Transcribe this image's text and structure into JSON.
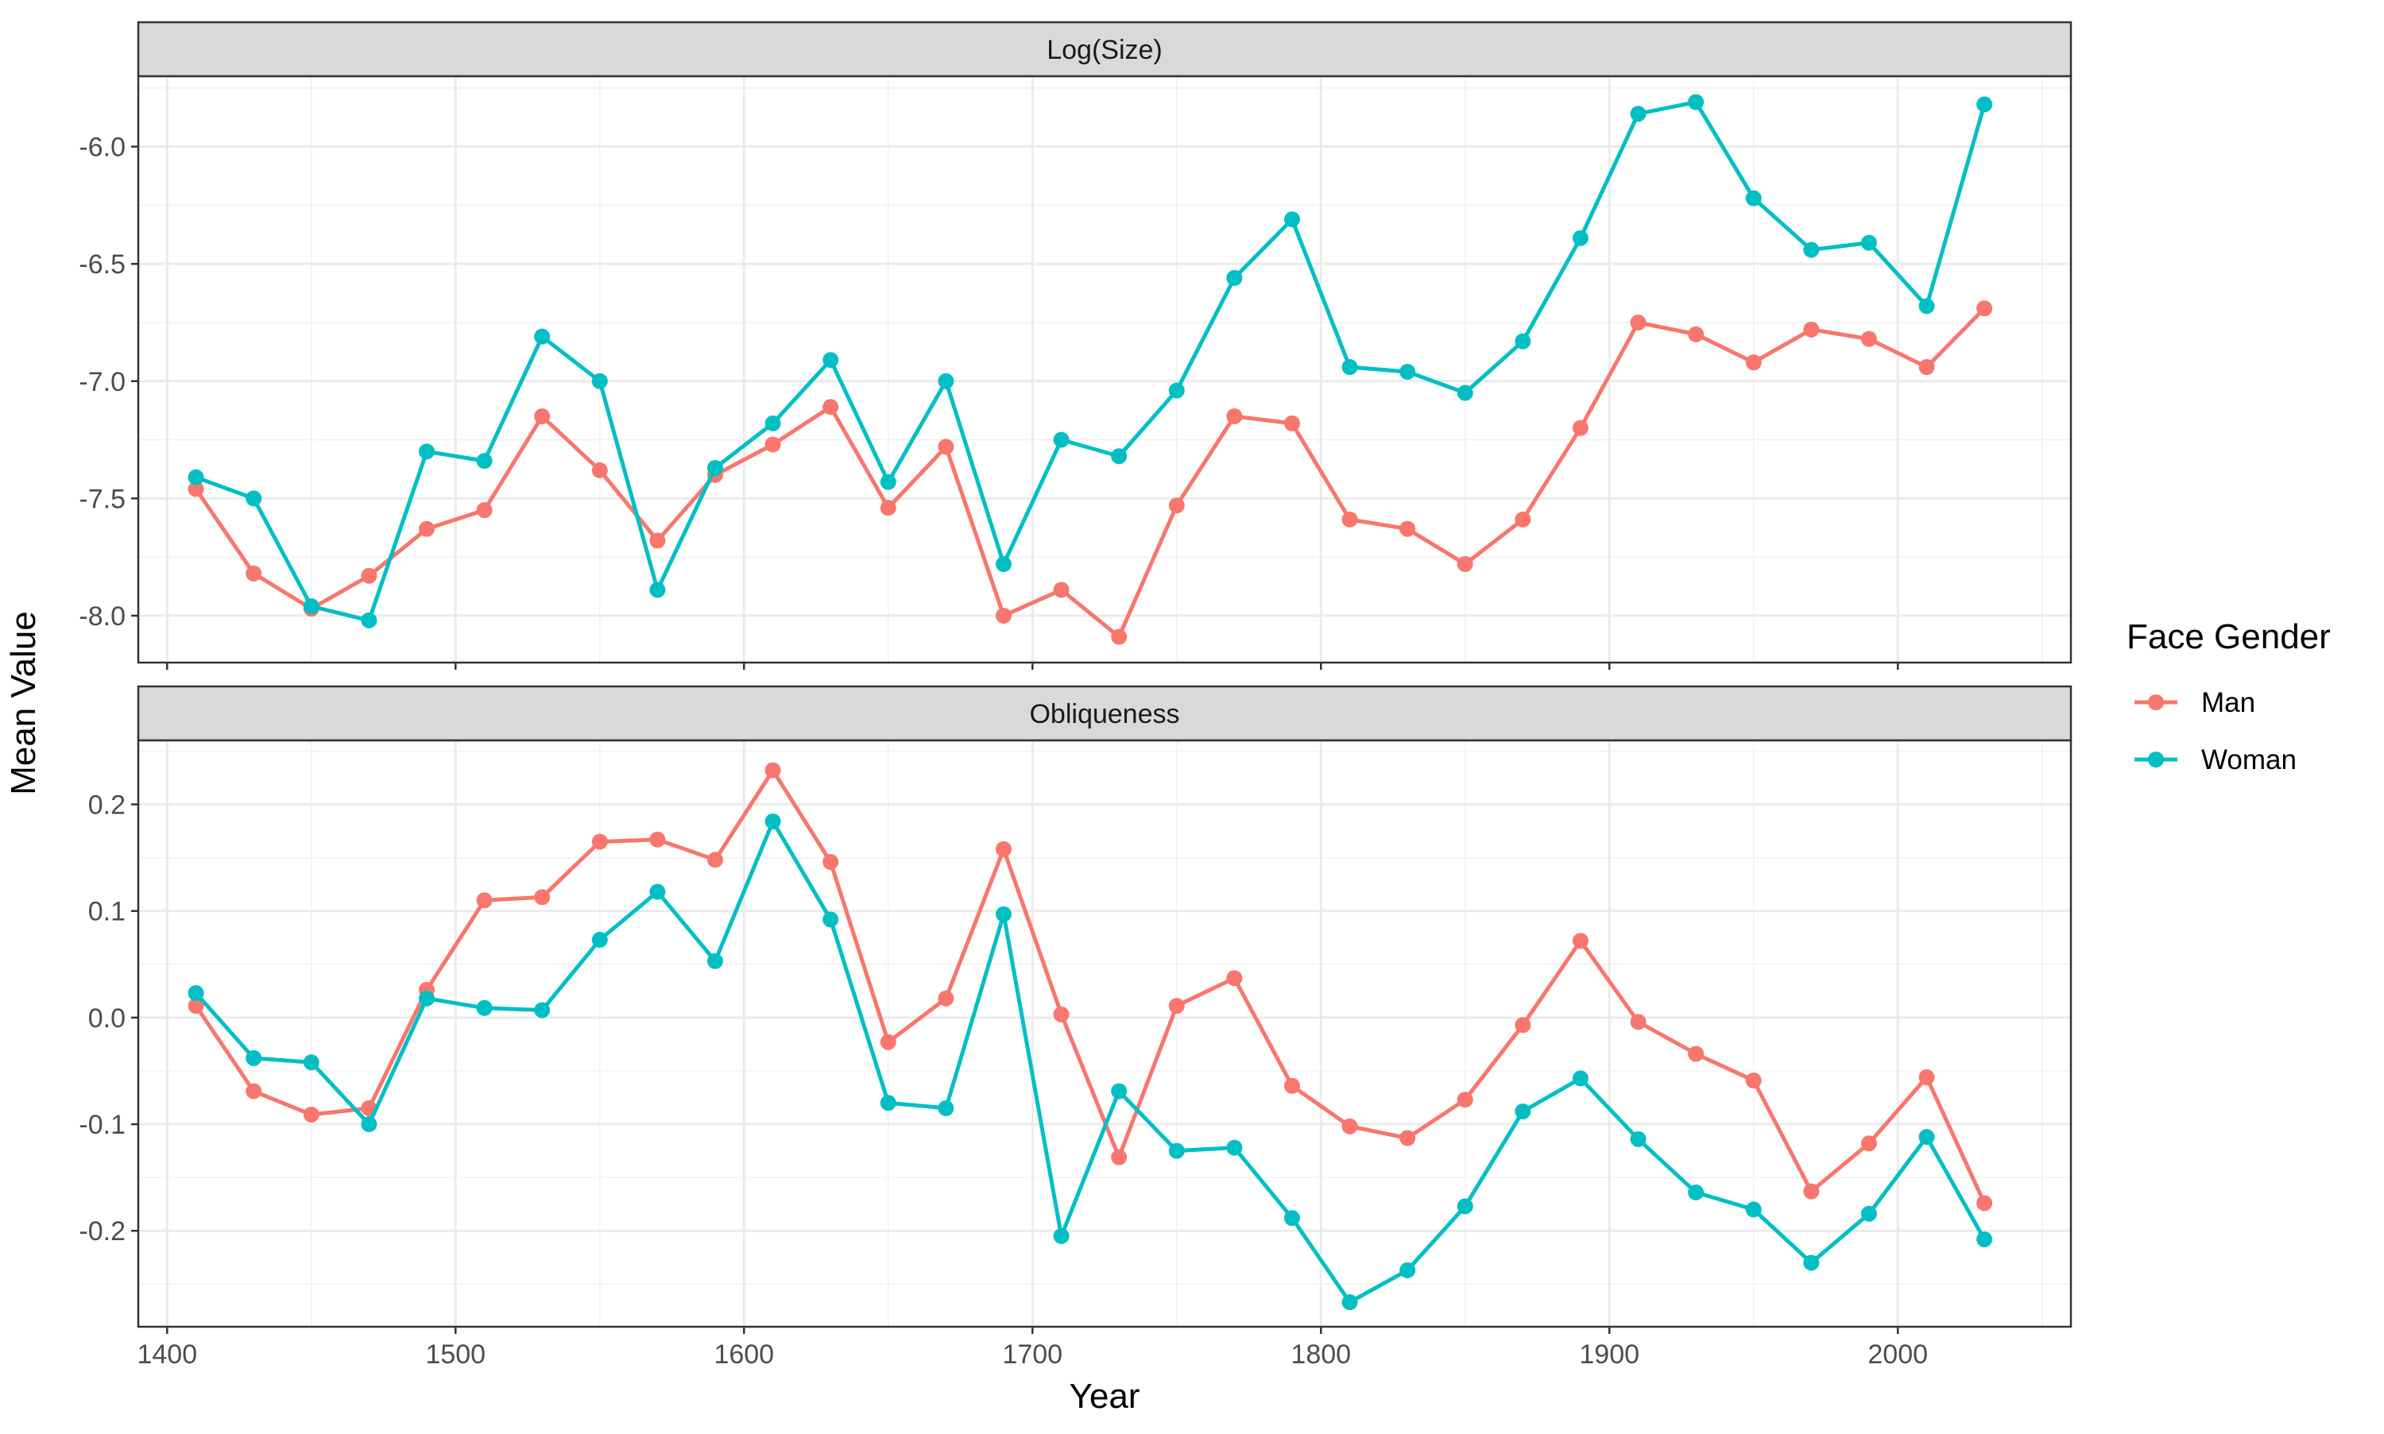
{
  "chart_data": {
    "type": "line",
    "xlabel": "Year",
    "ylabel": "Mean Value",
    "xlim": [
      1390,
      2060
    ],
    "x_ticks": [
      1400,
      1500,
      1600,
      1700,
      1800,
      1900,
      2000
    ],
    "x_tick_labels": [
      "1400",
      "1500",
      "1600",
      "1700",
      "1800",
      "1900",
      "2000"
    ],
    "x": [
      1410,
      1430,
      1450,
      1470,
      1490,
      1510,
      1530,
      1550,
      1570,
      1590,
      1610,
      1630,
      1650,
      1670,
      1690,
      1710,
      1730,
      1750,
      1770,
      1790,
      1810,
      1830,
      1850,
      1870,
      1890,
      1910,
      1930,
      1950,
      1970,
      1990,
      2010,
      2030
    ],
    "grid": true,
    "legend": {
      "title": "Face Gender",
      "position": "right",
      "entries": [
        {
          "label": "Man",
          "color": "#F8766D"
        },
        {
          "label": "Woman",
          "color": "#00BFC4"
        }
      ]
    },
    "panels": [
      {
        "title": "Log(Size)",
        "ylim": [
          -8.2,
          -5.7
        ],
        "y_ticks": [
          -8.0,
          -7.5,
          -7.0,
          -6.5,
          -6.0
        ],
        "y_tick_labels": [
          "-8.0",
          "-7.5",
          "-7.0",
          "-6.5",
          "-6.0"
        ],
        "series": [
          {
            "name": "Man",
            "color": "#F8766D",
            "values": [
              -7.46,
              -7.82,
              -7.97,
              -7.83,
              -7.63,
              -7.55,
              -7.15,
              -7.38,
              -7.68,
              -7.4,
              -7.27,
              -7.11,
              -7.54,
              -7.28,
              -8.0,
              -7.89,
              -8.09,
              -7.53,
              -7.15,
              -7.18,
              -7.59,
              -7.63,
              -7.78,
              -7.59,
              -7.2,
              -6.75,
              -6.8,
              -6.92,
              -6.78,
              -6.82,
              -6.94,
              -6.69
            ]
          },
          {
            "name": "Woman",
            "color": "#00BFC4",
            "values": [
              -7.41,
              -7.5,
              -7.96,
              -8.02,
              -7.3,
              -7.34,
              -6.81,
              -7.0,
              -7.89,
              -7.37,
              -7.18,
              -6.91,
              -7.43,
              -7.0,
              -7.78,
              -7.25,
              -7.32,
              -7.04,
              -6.56,
              -6.31,
              -6.94,
              -6.96,
              -7.05,
              -6.83,
              -6.39,
              -5.86,
              -5.81,
              -6.22,
              -6.44,
              -6.41,
              -6.68,
              -5.82
            ]
          }
        ]
      },
      {
        "title": "Obliqueness",
        "ylim": [
          -0.29,
          0.26
        ],
        "y_ticks": [
          -0.2,
          -0.1,
          0.0,
          0.1,
          0.2
        ],
        "y_tick_labels": [
          "-0.2",
          "-0.1",
          "0.0",
          "0.1",
          "0.2"
        ],
        "series": [
          {
            "name": "Man",
            "color": "#F8766D",
            "values": [
              0.011,
              -0.069,
              -0.091,
              -0.085,
              0.026,
              0.11,
              0.113,
              0.165,
              0.167,
              0.148,
              0.232,
              0.146,
              -0.023,
              0.018,
              0.158,
              0.003,
              -0.131,
              0.011,
              0.037,
              -0.064,
              -0.102,
              -0.113,
              -0.077,
              -0.007,
              0.072,
              -0.004,
              -0.034,
              -0.059,
              -0.163,
              -0.118,
              -0.056,
              -0.174
            ]
          },
          {
            "name": "Woman",
            "color": "#00BFC4",
            "values": [
              0.023,
              -0.038,
              -0.042,
              -0.1,
              0.018,
              0.009,
              0.007,
              0.073,
              0.118,
              0.053,
              0.184,
              0.092,
              -0.08,
              -0.085,
              0.097,
              -0.205,
              -0.069,
              -0.125,
              -0.122,
              -0.188,
              -0.267,
              -0.237,
              -0.177,
              -0.088,
              -0.057,
              -0.114,
              -0.164,
              -0.18,
              -0.23,
              -0.184,
              -0.112,
              -0.208
            ]
          }
        ]
      }
    ]
  }
}
